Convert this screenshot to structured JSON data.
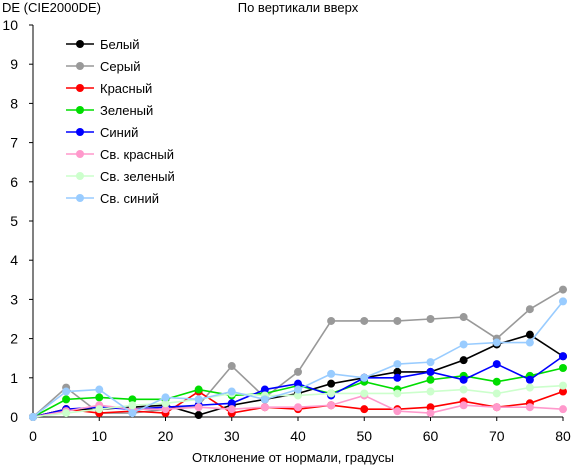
{
  "chart_data": {
    "type": "line",
    "title": "По вертикали вверх",
    "ylabel": "DE (CIE2000DE)",
    "xlabel": "Отклонение от нормали, градусы",
    "xlim": [
      0,
      80
    ],
    "ylim": [
      0,
      10
    ],
    "x_ticks": [
      0,
      10,
      20,
      30,
      40,
      50,
      60,
      70,
      80
    ],
    "y_ticks": [
      0,
      1,
      2,
      3,
      4,
      5,
      6,
      7,
      8,
      9,
      10
    ],
    "grid": false,
    "legend": "top-left",
    "x": [
      0,
      5,
      10,
      15,
      20,
      25,
      30,
      35,
      40,
      45,
      50,
      55,
      60,
      65,
      70,
      75,
      80
    ],
    "series": [
      {
        "name": "Белый",
        "color": "#000000",
        "values": [
          0,
          0.2,
          0.2,
          0.25,
          0.3,
          0.05,
          0.3,
          0.45,
          0.6,
          0.85,
          1.0,
          1.15,
          1.15,
          1.45,
          1.85,
          2.1,
          1.55
        ]
      },
      {
        "name": "Серый",
        "color": "#999999",
        "values": [
          0,
          0.75,
          0.1,
          0.1,
          0.2,
          0.3,
          1.3,
          0.5,
          1.15,
          2.45,
          2.45,
          2.45,
          2.5,
          2.55,
          2.0,
          2.75,
          3.25
        ]
      },
      {
        "name": "Красный",
        "color": "#ff0000",
        "values": [
          0,
          0.2,
          0.1,
          0.15,
          0.1,
          0.65,
          0.1,
          0.25,
          0.2,
          0.3,
          0.2,
          0.2,
          0.25,
          0.4,
          0.25,
          0.35,
          0.65
        ]
      },
      {
        "name": "Зеленый",
        "color": "#00dd00",
        "values": [
          0,
          0.45,
          0.5,
          0.45,
          0.45,
          0.7,
          0.55,
          0.6,
          0.8,
          0.6,
          0.9,
          0.7,
          0.95,
          1.05,
          0.9,
          1.05,
          1.25
        ]
      },
      {
        "name": "Синий",
        "color": "#0000ff",
        "values": [
          0,
          0.2,
          0.25,
          0.2,
          0.25,
          0.3,
          0.35,
          0.7,
          0.85,
          0.55,
          1.0,
          1.0,
          1.15,
          0.95,
          1.35,
          0.95,
          1.55
        ]
      },
      {
        "name": "Св. красный",
        "color": "#ff99cc",
        "values": [
          0,
          0.15,
          0.3,
          0.2,
          0.2,
          0.25,
          0.2,
          0.25,
          0.25,
          0.3,
          0.55,
          0.15,
          0.1,
          0.3,
          0.25,
          0.25,
          0.2
        ]
      },
      {
        "name": "Св. зеленый",
        "color": "#ccffcc",
        "values": [
          0,
          0.1,
          0.2,
          0.3,
          0.35,
          0.45,
          0.6,
          0.55,
          0.55,
          0.6,
          0.6,
          0.6,
          0.65,
          0.7,
          0.6,
          0.75,
          0.8
        ]
      },
      {
        "name": "Св. синий",
        "color": "#99ccff",
        "values": [
          0,
          0.65,
          0.7,
          0.1,
          0.5,
          0.45,
          0.65,
          0.45,
          0.7,
          1.1,
          1.0,
          1.35,
          1.4,
          1.85,
          1.9,
          1.9,
          2.95
        ]
      }
    ]
  }
}
